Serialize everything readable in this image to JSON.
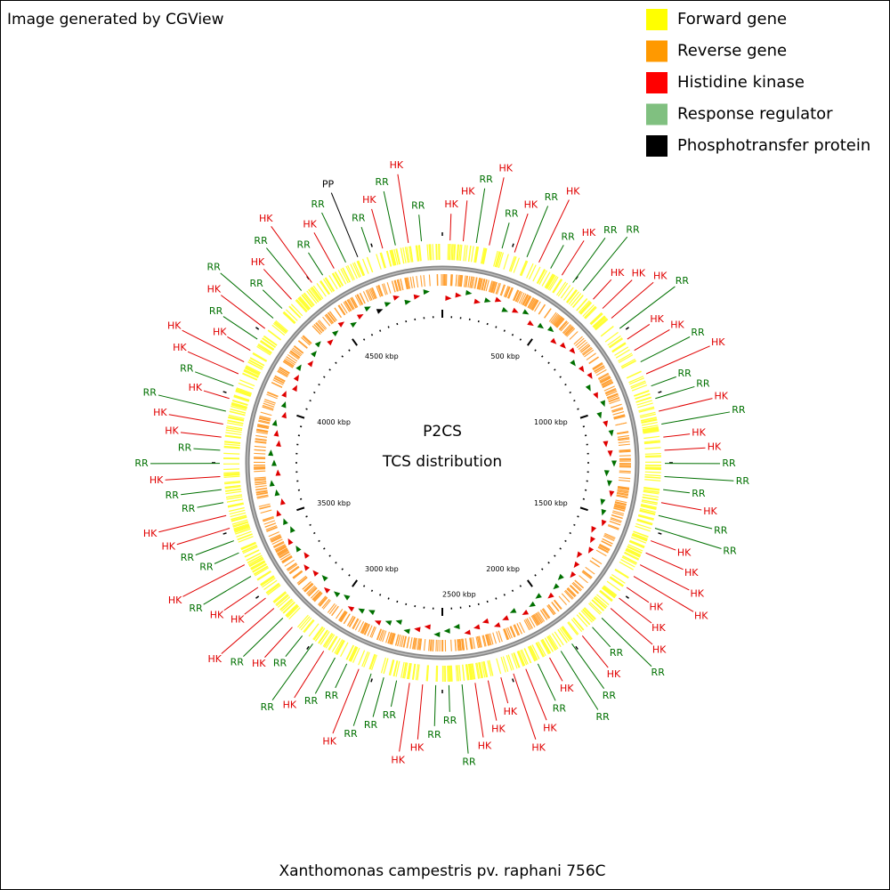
{
  "header": {
    "title": "Image generated by CGView"
  },
  "legend": [
    {
      "name": "Forward gene",
      "color": "#ffff00"
    },
    {
      "name": "Reverse gene",
      "color": "#ff9900"
    },
    {
      "name": "Histidine kinase",
      "color": "#ff0000"
    },
    {
      "name": "Response regulator",
      "color": "#80c080"
    },
    {
      "name": "Phosphotransfer protein",
      "color": "#000000"
    }
  ],
  "center": {
    "title": "P2CS",
    "subtitle": "TCS distribution"
  },
  "ticks": [
    "500 kbp",
    "1000 kbp",
    "1500 kbp",
    "2000 kbp",
    "2500 kbp",
    "3000 kbp",
    "3500 kbp",
    "4000 kbp",
    "4500 kbp"
  ],
  "features": [
    {
      "label": "HK",
      "color": "#e00000"
    },
    {
      "label": "HK",
      "color": "#e00000"
    },
    {
      "label": "RR",
      "color": "#007000"
    },
    {
      "label": "HK",
      "color": "#e00000"
    },
    {
      "label": "RR",
      "color": "#007000"
    },
    {
      "label": "HK",
      "color": "#e00000"
    },
    {
      "label": "RR",
      "color": "#007000"
    },
    {
      "label": "HK",
      "color": "#e00000"
    },
    {
      "label": "RR",
      "color": "#007000"
    },
    {
      "label": "HK",
      "color": "#e00000"
    },
    {
      "label": "RR",
      "color": "#007000"
    },
    {
      "label": "RR",
      "color": "#007000"
    },
    {
      "label": "HK",
      "color": "#e00000"
    },
    {
      "label": "HK",
      "color": "#e00000"
    },
    {
      "label": "HK",
      "color": "#e00000"
    },
    {
      "label": "RR",
      "color": "#007000"
    },
    {
      "label": "HK",
      "color": "#e00000"
    },
    {
      "label": "HK",
      "color": "#e00000"
    },
    {
      "label": "RR",
      "color": "#007000"
    },
    {
      "label": "HK",
      "color": "#e00000"
    },
    {
      "label": "RR",
      "color": "#007000"
    },
    {
      "label": "RR",
      "color": "#007000"
    },
    {
      "label": "HK",
      "color": "#e00000"
    },
    {
      "label": "RR",
      "color": "#007000"
    },
    {
      "label": "HK",
      "color": "#e00000"
    },
    {
      "label": "HK",
      "color": "#e00000"
    },
    {
      "label": "RR",
      "color": "#007000"
    },
    {
      "label": "RR",
      "color": "#007000"
    },
    {
      "label": "RR",
      "color": "#007000"
    },
    {
      "label": "HK",
      "color": "#e00000"
    },
    {
      "label": "RR",
      "color": "#007000"
    },
    {
      "label": "RR",
      "color": "#007000"
    },
    {
      "label": "HK",
      "color": "#e00000"
    },
    {
      "label": "HK",
      "color": "#e00000"
    },
    {
      "label": "HK",
      "color": "#e00000"
    },
    {
      "label": "HK",
      "color": "#e00000"
    },
    {
      "label": "HK",
      "color": "#e00000"
    },
    {
      "label": "HK",
      "color": "#e00000"
    },
    {
      "label": "HK",
      "color": "#e00000"
    },
    {
      "label": "RR",
      "color": "#007000"
    },
    {
      "label": "RR",
      "color": "#007000"
    },
    {
      "label": "HK",
      "color": "#e00000"
    },
    {
      "label": "RR",
      "color": "#007000"
    },
    {
      "label": "RR",
      "color": "#007000"
    },
    {
      "label": "HK",
      "color": "#e00000"
    },
    {
      "label": "RR",
      "color": "#007000"
    },
    {
      "label": "HK",
      "color": "#e00000"
    },
    {
      "label": "HK",
      "color": "#e00000"
    },
    {
      "label": "HK",
      "color": "#e00000"
    },
    {
      "label": "HK",
      "color": "#e00000"
    },
    {
      "label": "HK",
      "color": "#e00000"
    },
    {
      "label": "RR",
      "color": "#007000"
    },
    {
      "label": "RR",
      "color": "#007000"
    },
    {
      "label": "RR",
      "color": "#007000"
    },
    {
      "label": "HK",
      "color": "#e00000"
    },
    {
      "label": "HK",
      "color": "#e00000"
    },
    {
      "label": "RR",
      "color": "#007000"
    },
    {
      "label": "RR",
      "color": "#007000"
    },
    {
      "label": "RR",
      "color": "#007000"
    },
    {
      "label": "HK",
      "color": "#e00000"
    },
    {
      "label": "RR",
      "color": "#007000"
    },
    {
      "label": "RR",
      "color": "#007000"
    },
    {
      "label": "HK",
      "color": "#e00000"
    },
    {
      "label": "RR",
      "color": "#007000"
    },
    {
      "label": "RR",
      "color": "#007000"
    },
    {
      "label": "HK",
      "color": "#e00000"
    },
    {
      "label": "RR",
      "color": "#007000"
    },
    {
      "label": "HK",
      "color": "#e00000"
    },
    {
      "label": "HK",
      "color": "#e00000"
    },
    {
      "label": "HK",
      "color": "#e00000"
    },
    {
      "label": "RR",
      "color": "#007000"
    },
    {
      "label": "HK",
      "color": "#e00000"
    },
    {
      "label": "RR",
      "color": "#007000"
    },
    {
      "label": "RR",
      "color": "#007000"
    },
    {
      "label": "HK",
      "color": "#e00000"
    },
    {
      "label": "HK",
      "color": "#e00000"
    },
    {
      "label": "RR",
      "color": "#007000"
    },
    {
      "label": "RR",
      "color": "#007000"
    },
    {
      "label": "HK",
      "color": "#e00000"
    },
    {
      "label": "RR",
      "color": "#007000"
    },
    {
      "label": "RR",
      "color": "#007000"
    },
    {
      "label": "HK",
      "color": "#e00000"
    },
    {
      "label": "HK",
      "color": "#e00000"
    },
    {
      "label": "RR",
      "color": "#007000"
    },
    {
      "label": "HK",
      "color": "#e00000"
    },
    {
      "label": "RR",
      "color": "#007000"
    },
    {
      "label": "HK",
      "color": "#e00000"
    },
    {
      "label": "HK",
      "color": "#e00000"
    },
    {
      "label": "HK",
      "color": "#e00000"
    },
    {
      "label": "RR",
      "color": "#007000"
    },
    {
      "label": "HK",
      "color": "#e00000"
    },
    {
      "label": "RR",
      "color": "#007000"
    },
    {
      "label": "RR",
      "color": "#007000"
    },
    {
      "label": "HK",
      "color": "#e00000"
    },
    {
      "label": "RR",
      "color": "#007000"
    },
    {
      "label": "HK",
      "color": "#e00000"
    },
    {
      "label": "RR",
      "color": "#007000"
    },
    {
      "label": "HK",
      "color": "#e00000"
    },
    {
      "label": "RR",
      "color": "#007000"
    },
    {
      "label": "PP",
      "color": "#000000"
    },
    {
      "label": "RR",
      "color": "#007000"
    },
    {
      "label": "HK",
      "color": "#e00000"
    },
    {
      "label": "RR",
      "color": "#007000"
    },
    {
      "label": "HK",
      "color": "#e00000"
    },
    {
      "label": "RR",
      "color": "#007000"
    }
  ],
  "footer": {
    "caption": "Xanthomonas campestris pv. raphani 756C"
  }
}
